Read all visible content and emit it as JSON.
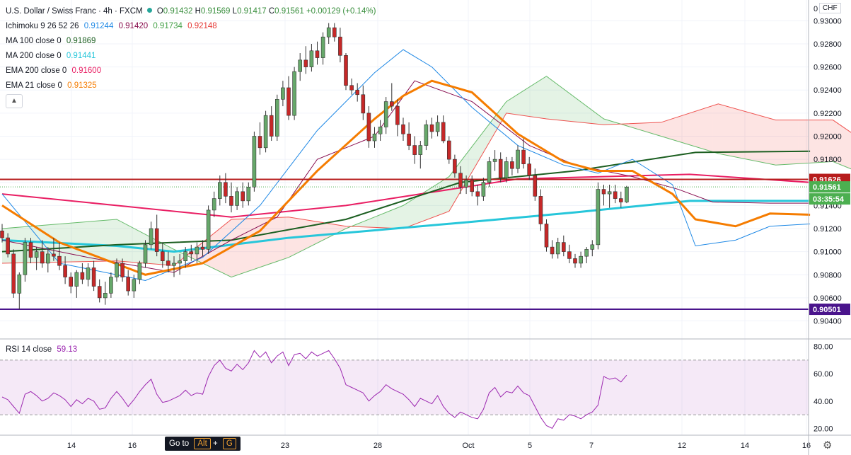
{
  "header": {
    "symbol": "U.S. Dollar / Swiss Franc · 4h · FXCM",
    "o_label": "O",
    "o": "0.91432",
    "h_label": "H",
    "h": "0.91569",
    "l_label": "L",
    "l": "0.91417",
    "c_label": "C",
    "c": "0.91561",
    "change": "+0.00129 (+0.14%)"
  },
  "indicators": [
    {
      "label": "Ichimoku 9 26 52 26",
      "values": [
        "0.91244",
        "0.91420",
        "0.91734",
        "0.92148"
      ],
      "colors": [
        "#1e88e5",
        "#880e4f",
        "#43a047",
        "#e53935"
      ]
    },
    {
      "label": "MA 100 close 0",
      "values": [
        "0.91869"
      ],
      "colors": [
        "#1b5e20"
      ]
    },
    {
      "label": "MA 200 close 0",
      "values": [
        "0.91441"
      ],
      "colors": [
        "#26c6da"
      ]
    },
    {
      "label": "EMA 200 close 0",
      "values": [
        "0.91600"
      ],
      "colors": [
        "#e91e63"
      ]
    },
    {
      "label": "EMA 21 close 0",
      "values": [
        "0.91325"
      ],
      "colors": [
        "#f57c00"
      ]
    }
  ],
  "collapse_icon": "chevron-up-icon",
  "rsi": {
    "label": "RSI 14 close",
    "value": "59.13",
    "color": "#9c27b0"
  },
  "goto": {
    "label": "Go to",
    "key1": "Alt",
    "plus": "+",
    "key2": "G"
  },
  "currency": "CHF",
  "price_axis": {
    "ticks": [
      "0.93000",
      "0.92800",
      "0.92600",
      "0.92400",
      "0.92200",
      "0.92000",
      "0.91800",
      "0.91600",
      "0.91400",
      "0.91200",
      "0.91000",
      "0.90800",
      "0.90600",
      "0.90400"
    ],
    "top_cut": "0"
  },
  "rsi_axis": {
    "ticks": [
      "80.00",
      "60.00",
      "40.00",
      "20.00"
    ]
  },
  "time_axis": {
    "ticks": [
      "14",
      "16",
      "23",
      "28",
      "Oct",
      "5",
      "7",
      "12",
      "14",
      "16"
    ]
  },
  "badges": {
    "red_level": "0.91626",
    "last_price": "0.91561",
    "countdown": "03:35:54",
    "purple_level": "0.90501"
  },
  "colors": {
    "bull": "#388e3c",
    "bull_fill": "#66a86a",
    "bear": "#e53935",
    "bear_fill": "#c62828",
    "red_level": "#b71c1c",
    "purple_level": "#4a148c",
    "last_price": "#4caf50"
  },
  "chart_data": {
    "type": "candlestick",
    "ylim": [
      0.9025,
      0.9318
    ],
    "levels": {
      "resistance": 0.91626,
      "support": 0.90501,
      "last": 0.91561
    },
    "candles": [
      [
        0.9118,
        0.9124,
        0.9108,
        0.9112
      ],
      [
        0.9112,
        0.9116,
        0.9095,
        0.9098
      ],
      [
        0.9098,
        0.9102,
        0.906,
        0.9064
      ],
      [
        0.9064,
        0.9082,
        0.905,
        0.908
      ],
      [
        0.908,
        0.9112,
        0.9074,
        0.9108
      ],
      [
        0.9108,
        0.9112,
        0.909,
        0.9095
      ],
      [
        0.9095,
        0.9104,
        0.9084,
        0.91
      ],
      [
        0.91,
        0.911,
        0.9086,
        0.909
      ],
      [
        0.909,
        0.9104,
        0.9082,
        0.9098
      ],
      [
        0.9098,
        0.9112,
        0.9092,
        0.9096
      ],
      [
        0.9096,
        0.9108,
        0.9084,
        0.9088
      ],
      [
        0.9088,
        0.9096,
        0.9072,
        0.9078
      ],
      [
        0.9078,
        0.9082,
        0.9064,
        0.907
      ],
      [
        0.907,
        0.9084,
        0.906,
        0.9082
      ],
      [
        0.9082,
        0.909,
        0.9072,
        0.9076
      ],
      [
        0.9076,
        0.909,
        0.907,
        0.9086
      ],
      [
        0.9086,
        0.9092,
        0.9066,
        0.907
      ],
      [
        0.907,
        0.9076,
        0.9056,
        0.906
      ],
      [
        0.906,
        0.9074,
        0.9054,
        0.9064
      ],
      [
        0.9064,
        0.9082,
        0.906,
        0.9078
      ],
      [
        0.9078,
        0.9094,
        0.9074,
        0.909
      ],
      [
        0.909,
        0.9094,
        0.9074,
        0.9078
      ],
      [
        0.9078,
        0.9084,
        0.9062,
        0.9066
      ],
      [
        0.9066,
        0.908,
        0.906,
        0.9076
      ],
      [
        0.9076,
        0.9092,
        0.9072,
        0.909
      ],
      [
        0.909,
        0.911,
        0.9086,
        0.9106
      ],
      [
        0.9106,
        0.9126,
        0.9102,
        0.912
      ],
      [
        0.912,
        0.9132,
        0.9096,
        0.91
      ],
      [
        0.91,
        0.9108,
        0.9086,
        0.9092
      ],
      [
        0.9092,
        0.91,
        0.9082,
        0.9088
      ],
      [
        0.9088,
        0.9096,
        0.9078,
        0.909
      ],
      [
        0.909,
        0.9098,
        0.908,
        0.9092
      ],
      [
        0.9092,
        0.9104,
        0.9086,
        0.91
      ],
      [
        0.91,
        0.9106,
        0.9092,
        0.9098
      ],
      [
        0.9098,
        0.9108,
        0.909,
        0.9104
      ],
      [
        0.9104,
        0.911,
        0.9096,
        0.9102
      ],
      [
        0.9102,
        0.914,
        0.9098,
        0.9136
      ],
      [
        0.9136,
        0.9152,
        0.913,
        0.9146
      ],
      [
        0.9146,
        0.9166,
        0.914,
        0.916
      ],
      [
        0.916,
        0.9168,
        0.9142,
        0.9148
      ],
      [
        0.9148,
        0.916,
        0.9134,
        0.914
      ],
      [
        0.914,
        0.9156,
        0.9136,
        0.9152
      ],
      [
        0.9152,
        0.916,
        0.9138,
        0.9144
      ],
      [
        0.9144,
        0.916,
        0.914,
        0.9156
      ],
      [
        0.9156,
        0.9204,
        0.9152,
        0.92
      ],
      [
        0.92,
        0.9212,
        0.9184,
        0.919
      ],
      [
        0.919,
        0.9222,
        0.9186,
        0.9218
      ],
      [
        0.9218,
        0.9226,
        0.9196,
        0.92
      ],
      [
        0.92,
        0.9236,
        0.9196,
        0.9232
      ],
      [
        0.9232,
        0.9248,
        0.9226,
        0.9242
      ],
      [
        0.9242,
        0.9252,
        0.9214,
        0.9218
      ],
      [
        0.9218,
        0.926,
        0.9214,
        0.9256
      ],
      [
        0.9256,
        0.9272,
        0.9248,
        0.9266
      ],
      [
        0.9266,
        0.9278,
        0.9254,
        0.926
      ],
      [
        0.926,
        0.928,
        0.9256,
        0.9274
      ],
      [
        0.9274,
        0.9282,
        0.9262,
        0.9268
      ],
      [
        0.9268,
        0.929,
        0.9262,
        0.9286
      ],
      [
        0.9286,
        0.9298,
        0.928,
        0.9294
      ],
      [
        0.9294,
        0.9298,
        0.9282,
        0.9286
      ],
      [
        0.9286,
        0.9294,
        0.9264,
        0.927
      ],
      [
        0.927,
        0.9272,
        0.924,
        0.9244
      ],
      [
        0.9244,
        0.925,
        0.9236,
        0.924
      ],
      [
        0.924,
        0.9246,
        0.923,
        0.9236
      ],
      [
        0.9236,
        0.9244,
        0.9214,
        0.922
      ],
      [
        0.922,
        0.9226,
        0.919,
        0.9196
      ],
      [
        0.9196,
        0.9208,
        0.919,
        0.9202
      ],
      [
        0.9202,
        0.9214,
        0.9196,
        0.9208
      ],
      [
        0.9208,
        0.9234,
        0.9202,
        0.923
      ],
      [
        0.923,
        0.9246,
        0.9222,
        0.9226
      ],
      [
        0.9226,
        0.9232,
        0.92,
        0.921
      ],
      [
        0.921,
        0.9216,
        0.9196,
        0.9202
      ],
      [
        0.9202,
        0.9212,
        0.9188,
        0.9192
      ],
      [
        0.9192,
        0.92,
        0.9176,
        0.9184
      ],
      [
        0.9184,
        0.9196,
        0.9172,
        0.9192
      ],
      [
        0.9192,
        0.9214,
        0.9188,
        0.921
      ],
      [
        0.921,
        0.9216,
        0.9198,
        0.9204
      ],
      [
        0.9204,
        0.9218,
        0.92,
        0.9212
      ],
      [
        0.9212,
        0.9218,
        0.9194,
        0.9196
      ],
      [
        0.9196,
        0.92,
        0.9176,
        0.918
      ],
      [
        0.918,
        0.9184,
        0.9164,
        0.9168
      ],
      [
        0.9168,
        0.9174,
        0.915,
        0.9156
      ],
      [
        0.9156,
        0.9166,
        0.915,
        0.9162
      ],
      [
        0.9162,
        0.9166,
        0.9148,
        0.9152
      ],
      [
        0.9152,
        0.9158,
        0.914,
        0.9148
      ],
      [
        0.9148,
        0.9164,
        0.9144,
        0.916
      ],
      [
        0.916,
        0.9182,
        0.9156,
        0.9178
      ],
      [
        0.9178,
        0.9188,
        0.917,
        0.918
      ],
      [
        0.918,
        0.9186,
        0.916,
        0.9164
      ],
      [
        0.9164,
        0.9182,
        0.916,
        0.9178
      ],
      [
        0.9178,
        0.9182,
        0.9166,
        0.9172
      ],
      [
        0.9172,
        0.9192,
        0.9168,
        0.9188
      ],
      [
        0.9188,
        0.9198,
        0.9172,
        0.9176
      ],
      [
        0.9176,
        0.9182,
        0.9162,
        0.9166
      ],
      [
        0.9166,
        0.9172,
        0.9144,
        0.9148
      ],
      [
        0.9148,
        0.9154,
        0.9118,
        0.9124
      ],
      [
        0.9124,
        0.9128,
        0.91,
        0.9104
      ],
      [
        0.9104,
        0.911,
        0.9094,
        0.9098
      ],
      [
        0.9098,
        0.9112,
        0.9094,
        0.9108
      ],
      [
        0.9108,
        0.9114,
        0.9096,
        0.91
      ],
      [
        0.91,
        0.9106,
        0.909,
        0.9094
      ],
      [
        0.9094,
        0.9098,
        0.9086,
        0.909
      ],
      [
        0.909,
        0.91,
        0.9086,
        0.9096
      ],
      [
        0.9096,
        0.9104,
        0.909,
        0.9102
      ],
      [
        0.9102,
        0.911,
        0.9096,
        0.9106
      ],
      [
        0.9106,
        0.916,
        0.9102,
        0.9154
      ],
      [
        0.9154,
        0.9158,
        0.914,
        0.915
      ],
      [
        0.915,
        0.9158,
        0.9138,
        0.9152
      ],
      [
        0.9152,
        0.9158,
        0.9142,
        0.9146
      ],
      [
        0.9146,
        0.9152,
        0.9138,
        0.9143
      ],
      [
        0.9143,
        0.9157,
        0.9142,
        0.9156
      ]
    ],
    "rsi_ylim": [
      15,
      85
    ],
    "rsi": [
      43,
      41,
      36,
      31,
      45,
      47,
      44,
      40,
      42,
      46,
      44,
      41,
      36,
      41,
      38,
      42,
      40,
      34,
      35,
      42,
      47,
      42,
      36,
      41,
      47,
      52,
      56,
      45,
      39,
      40,
      42,
      44,
      48,
      44,
      46,
      45,
      58,
      66,
      70,
      64,
      62,
      67,
      63,
      68,
      77,
      72,
      76,
      68,
      73,
      76,
      66,
      74,
      75,
      71,
      76,
      73,
      75,
      77,
      71,
      64,
      52,
      50,
      48,
      46,
      40,
      44,
      47,
      52,
      49,
      47,
      45,
      41,
      36,
      42,
      40,
      38,
      44,
      36,
      31,
      28,
      32,
      30,
      28,
      27,
      34,
      46,
      50,
      43,
      47,
      46,
      51,
      46,
      44,
      36,
      28,
      22,
      20,
      27,
      26,
      30,
      29,
      27,
      30,
      32,
      37,
      58,
      56,
      57,
      54,
      59
    ],
    "ma100": [
      [
        0,
        0.91
      ],
      [
        20,
        0.9106
      ],
      [
        40,
        0.911
      ],
      [
        60,
        0.9128
      ],
      [
        80,
        0.916
      ],
      [
        100,
        0.917
      ],
      [
        121,
        0.9186
      ],
      [
        141,
        0.9187
      ]
    ],
    "ma200": [
      [
        0,
        0.911
      ],
      [
        20,
        0.9105
      ],
      [
        30,
        0.91
      ],
      [
        50,
        0.9112
      ],
      [
        80,
        0.9125
      ],
      [
        100,
        0.9134
      ],
      [
        120,
        0.9144
      ],
      [
        141,
        0.9144
      ]
    ],
    "ema200": [
      [
        0,
        0.915
      ],
      [
        20,
        0.914
      ],
      [
        40,
        0.913
      ],
      [
        60,
        0.914
      ],
      [
        90,
        0.9163
      ],
      [
        120,
        0.9167
      ],
      [
        141,
        0.916
      ]
    ],
    "ema21": [
      [
        0,
        0.914
      ],
      [
        10,
        0.9108
      ],
      [
        25,
        0.908
      ],
      [
        35,
        0.909
      ],
      [
        45,
        0.9118
      ],
      [
        55,
        0.917
      ],
      [
        65,
        0.9215
      ],
      [
        70,
        0.9235
      ],
      [
        75,
        0.9248
      ],
      [
        82,
        0.9238
      ],
      [
        90,
        0.9202
      ],
      [
        98,
        0.9178
      ],
      [
        104,
        0.917
      ],
      [
        110,
        0.917
      ],
      [
        117,
        0.915
      ],
      [
        121,
        0.9128
      ],
      [
        128,
        0.9122
      ],
      [
        134,
        0.9133
      ],
      [
        141,
        0.9132
      ]
    ],
    "tenkan": [
      [
        0,
        0.915
      ],
      [
        10,
        0.909
      ],
      [
        25,
        0.9075
      ],
      [
        35,
        0.9095
      ],
      [
        45,
        0.914
      ],
      [
        55,
        0.9205
      ],
      [
        65,
        0.9255
      ],
      [
        70,
        0.9275
      ],
      [
        75,
        0.926
      ],
      [
        82,
        0.9225
      ],
      [
        90,
        0.9192
      ],
      [
        98,
        0.9175
      ],
      [
        104,
        0.9168
      ],
      [
        110,
        0.918
      ],
      [
        117,
        0.9158
      ],
      [
        121,
        0.9105
      ],
      [
        128,
        0.911
      ],
      [
        134,
        0.9122
      ],
      [
        141,
        0.9124
      ]
    ],
    "kijun": [
      [
        0,
        0.911
      ],
      [
        15,
        0.9095
      ],
      [
        30,
        0.9082
      ],
      [
        40,
        0.911
      ],
      [
        48,
        0.913
      ],
      [
        55,
        0.918
      ],
      [
        65,
        0.92
      ],
      [
        72,
        0.9248
      ],
      [
        82,
        0.923
      ],
      [
        92,
        0.9192
      ],
      [
        100,
        0.9175
      ],
      [
        110,
        0.9165
      ],
      [
        118,
        0.9154
      ],
      [
        124,
        0.9143
      ],
      [
        134,
        0.9142
      ],
      [
        141,
        0.9142
      ]
    ],
    "span_a": [
      [
        0,
        0.912
      ],
      [
        20,
        0.9128
      ],
      [
        30,
        0.9102
      ],
      [
        40,
        0.9078
      ],
      [
        50,
        0.9095
      ],
      [
        60,
        0.912
      ],
      [
        70,
        0.914
      ],
      [
        78,
        0.9165
      ],
      [
        88,
        0.923
      ],
      [
        95,
        0.9252
      ],
      [
        105,
        0.9215
      ],
      [
        115,
        0.92
      ],
      [
        125,
        0.9185
      ],
      [
        135,
        0.9175
      ],
      [
        145,
        0.9178
      ],
      [
        155,
        0.9158
      ]
    ],
    "span_b": [
      [
        0,
        0.909
      ],
      [
        20,
        0.9092
      ],
      [
        30,
        0.9088
      ],
      [
        40,
        0.9128
      ],
      [
        50,
        0.913
      ],
      [
        60,
        0.9122
      ],
      [
        70,
        0.912
      ],
      [
        78,
        0.9135
      ],
      [
        88,
        0.922
      ],
      [
        95,
        0.9215
      ],
      [
        105,
        0.921
      ],
      [
        115,
        0.9212
      ],
      [
        125,
        0.9228
      ],
      [
        135,
        0.9214
      ],
      [
        145,
        0.9214
      ],
      [
        155,
        0.918
      ]
    ]
  }
}
